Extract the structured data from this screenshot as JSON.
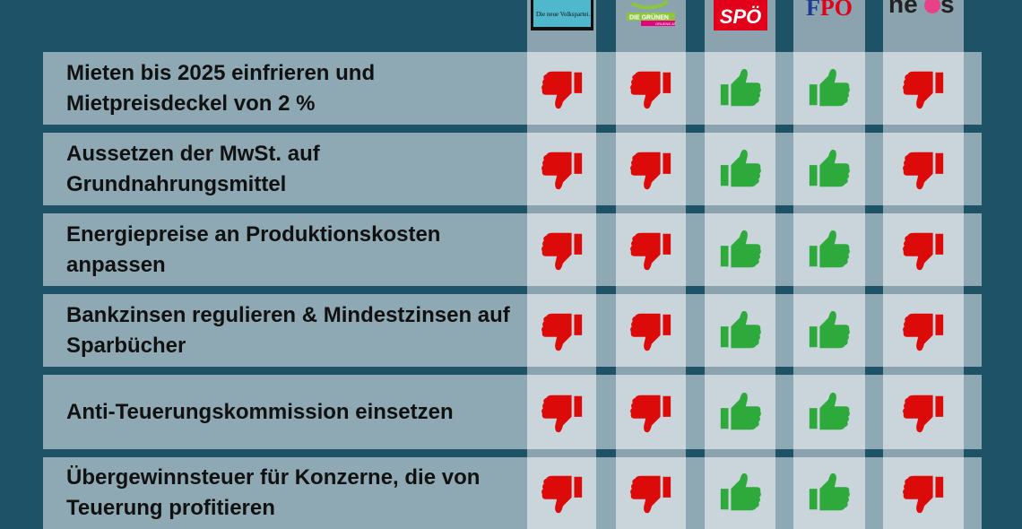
{
  "parties": [
    {
      "name": "ÖVP",
      "logo_text": "Die neue Volkspartei.",
      "color": "#4fb8cc"
    },
    {
      "name": "Die Grünen",
      "logo_text": "DIE GRÜNEN",
      "logo_subtext": "GRUENE.AT",
      "color": "#8cc63f"
    },
    {
      "name": "SPÖ",
      "logo_text": "SPÖ",
      "color": "#e2001a"
    },
    {
      "name": "FPÖ",
      "logo_text": "FPÖ",
      "color": "#1a3a94"
    },
    {
      "name": "NEOS",
      "logo_text": "neos",
      "color": "#e84188"
    }
  ],
  "colors": {
    "background": "#1e5367",
    "row": "#8fa9b4",
    "cell": "#c9d5db",
    "yes": "#2eaa3c",
    "no": "#dd0a0a"
  },
  "rows": [
    {
      "label": "Mieten bis 2025 einfrieren und Mietpreisdeckel von 2 %",
      "votes": [
        "no",
        "no",
        "yes",
        "yes",
        "no"
      ]
    },
    {
      "label": "Aussetzen der MwSt. auf Grundnahrungsmittel",
      "votes": [
        "no",
        "no",
        "yes",
        "yes",
        "no"
      ]
    },
    {
      "label": "Energiepreise an Produktionskosten anpassen",
      "votes": [
        "no",
        "no",
        "yes",
        "yes",
        "no"
      ]
    },
    {
      "label": "Bankzinsen regulieren & Mindestzinsen auf Sparbücher",
      "votes": [
        "no",
        "no",
        "yes",
        "yes",
        "no"
      ]
    },
    {
      "label": "Anti-Teuerungskommission einsetzen",
      "votes": [
        "no",
        "no",
        "yes",
        "yes",
        "no"
      ]
    },
    {
      "label": "Übergewinnsteuer für Konzerne, die von Teuerung profitieren",
      "votes": [
        "no",
        "no",
        "yes",
        "yes",
        "no"
      ]
    }
  ]
}
